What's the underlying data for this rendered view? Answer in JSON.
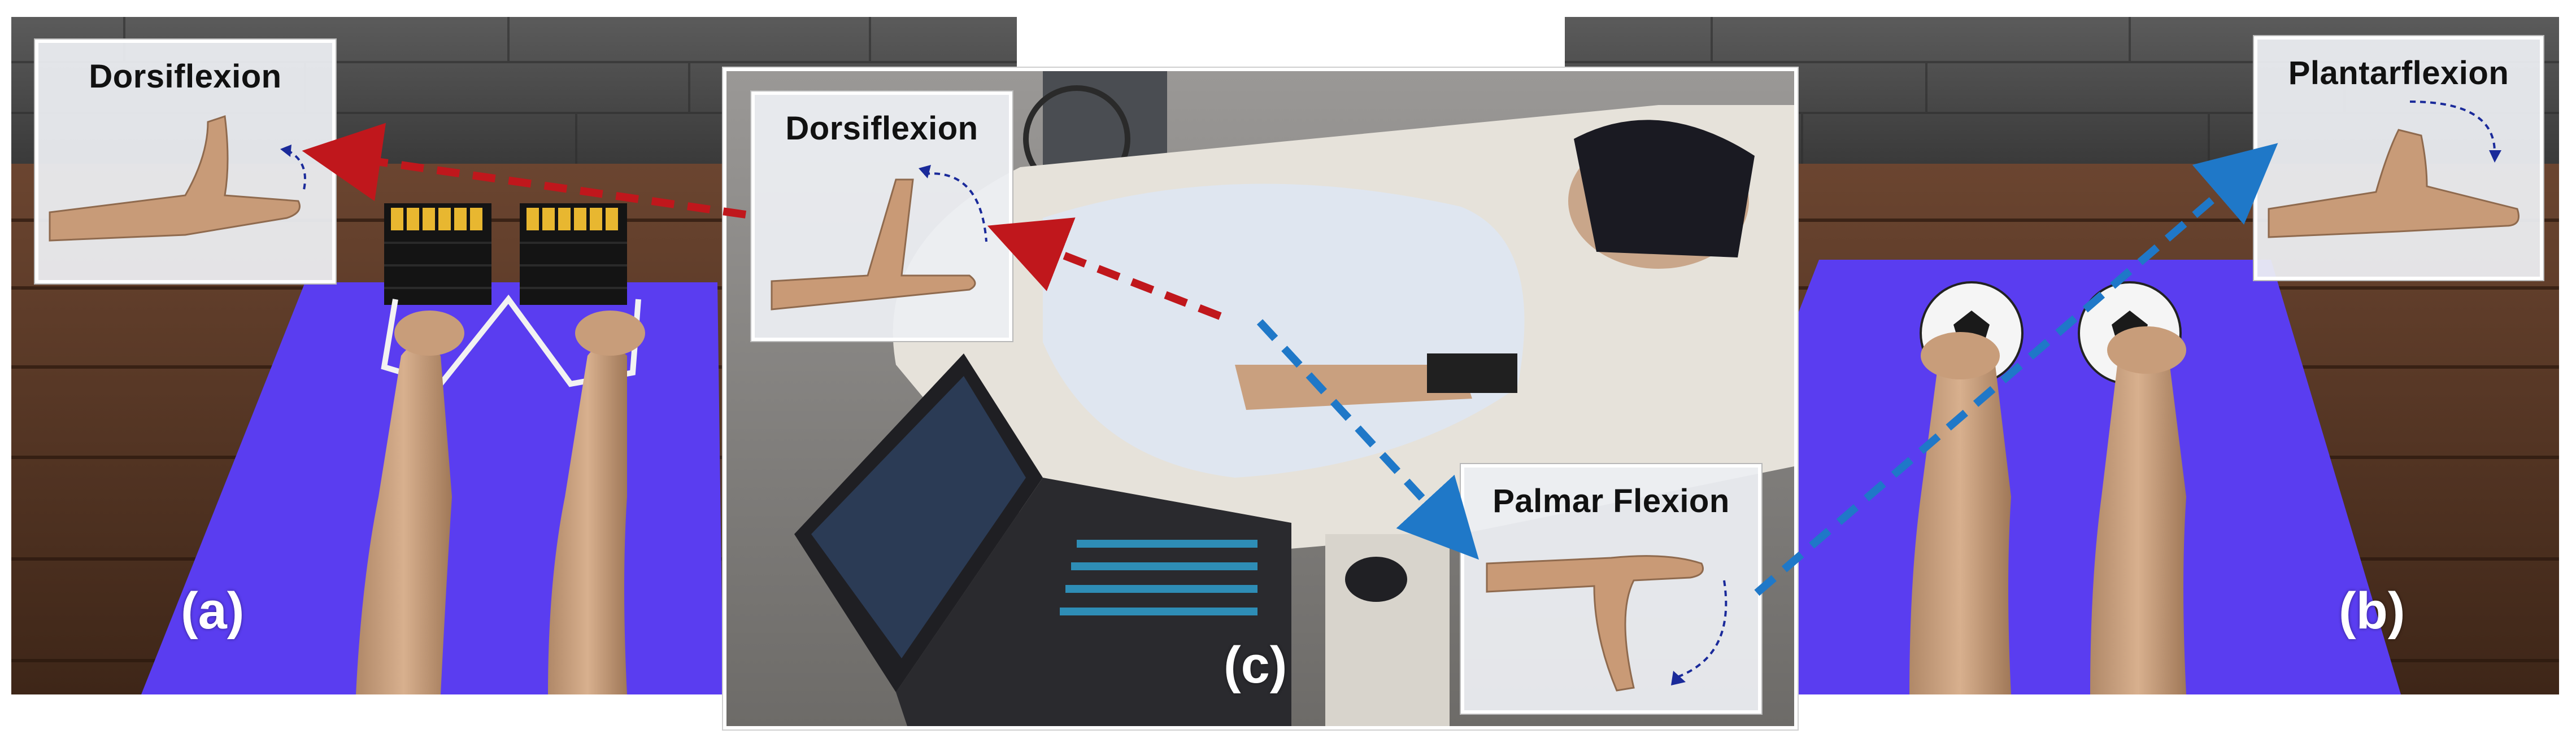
{
  "figure": {
    "panels": [
      {
        "id": "a",
        "tag": "(a)",
        "inset_label": "Dorsiflexion"
      },
      {
        "id": "b",
        "tag": "(b)",
        "inset_label": "Plantarflexion"
      },
      {
        "id": "c",
        "tag": "(c)",
        "inset_labels": [
          "Dorsiflexion",
          "Palmar Flexion"
        ]
      }
    ],
    "colors": {
      "arrow_red": "#c0171c",
      "arrow_blue": "#1f78c8",
      "mat": "#5a3df0",
      "wood_floor": "#5a3a2a",
      "stone_wall": "#4a4a4a",
      "motion_arrow": "#1a2a9a"
    }
  }
}
